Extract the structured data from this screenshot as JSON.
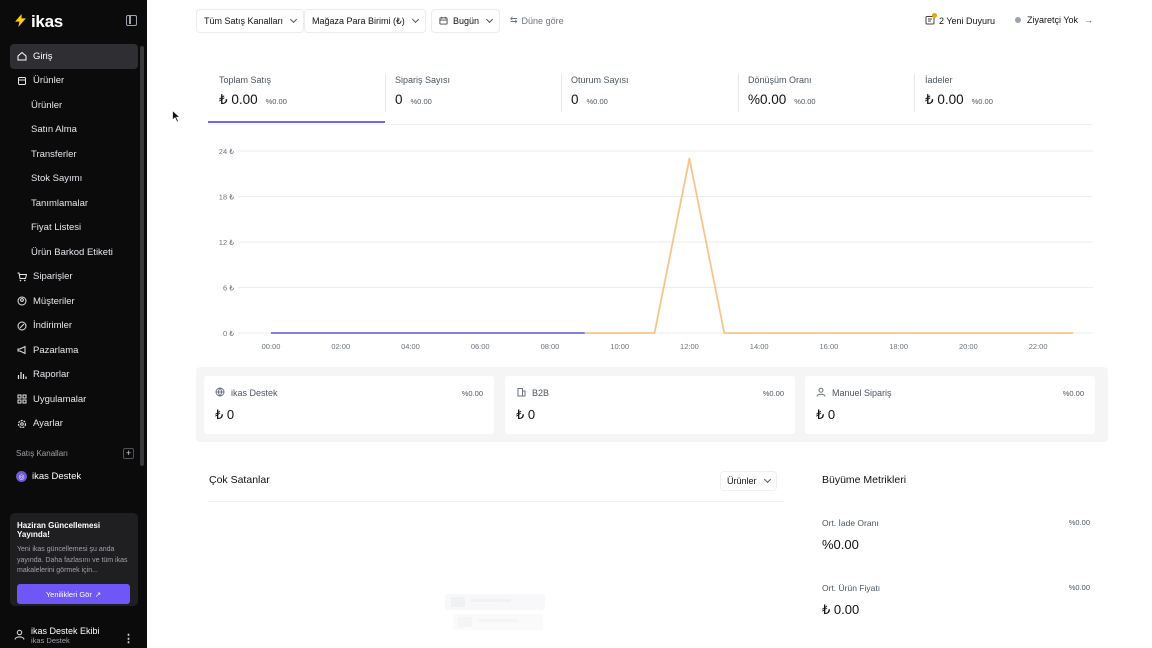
{
  "sidebar": {
    "brand": "ikas",
    "nav": [
      {
        "label": "Giriş",
        "icon": "home-icon",
        "active": true,
        "sub": false
      },
      {
        "label": "Ürünler",
        "icon": "box-icon",
        "active": false,
        "sub": false
      },
      {
        "label": "Ürünler",
        "sub": true
      },
      {
        "label": "Satın Alma",
        "sub": true
      },
      {
        "label": "Transferler",
        "sub": true
      },
      {
        "label": "Stok Sayımı",
        "sub": true
      },
      {
        "label": "Tanımlamalar",
        "sub": true
      },
      {
        "label": "Fiyat Listesi",
        "sub": true
      },
      {
        "label": "Ürün Barkod Etiketi",
        "sub": true
      },
      {
        "label": "Siparişler",
        "icon": "cart-icon",
        "sub": false
      },
      {
        "label": "Müşteriler",
        "icon": "customers-icon",
        "sub": false
      },
      {
        "label": "İndirimler",
        "icon": "discount-icon",
        "sub": false
      },
      {
        "label": "Pazarlama",
        "icon": "megaphone-icon",
        "sub": false
      },
      {
        "label": "Raporlar",
        "icon": "reports-icon",
        "sub": false
      },
      {
        "label": "Uygulamalar",
        "icon": "apps-icon",
        "sub": false
      },
      {
        "label": "Ayarlar",
        "icon": "gear-icon",
        "sub": false
      }
    ],
    "channels_header": "Satış Kanalları",
    "channel": "ikas Destek",
    "promo": {
      "title": "Haziran Güncellemesi Yayında!",
      "text": "Yeni ikas güncellemesi şu anda yayında. Daha fazlasını ve tüm ikas makalelerini görmek için...",
      "button": "Yenilikleri Gör"
    },
    "user": {
      "name": "ikas Destek Ekibi",
      "sub": "ikas Destek"
    }
  },
  "topbar": {
    "channels_filter": "Tüm Satış Kanalları",
    "currency_filter": "Mağaza Para Birimi (₺)",
    "date_filter": "Bugün",
    "compare": "Düne göre",
    "announcements": "2 Yeni Duyuru",
    "visitors": "Ziyaretçi Yok"
  },
  "metrics": [
    {
      "label": "Toplam Satış",
      "value": "₺ 0.00",
      "pct": "%0.00"
    },
    {
      "label": "Sipariş Sayısı",
      "value": "0",
      "pct": "%0.00"
    },
    {
      "label": "Oturum Sayısı",
      "value": "0",
      "pct": "%0.00"
    },
    {
      "label": "Dönüşüm Oranı",
      "value": "%0.00",
      "pct": "%0.00"
    },
    {
      "label": "İadeler",
      "value": "₺ 0.00",
      "pct": "%0.00"
    }
  ],
  "chart_data": {
    "type": "line",
    "x_ticks": [
      "00:00",
      "02:00",
      "04:00",
      "06:00",
      "08:00",
      "10:00",
      "12:00",
      "14:00",
      "16:00",
      "18:00",
      "20:00",
      "22:00"
    ],
    "y_ticks": [
      "0 ₺",
      "6 ₺",
      "12 ₺",
      "18 ₺",
      "24 ₺"
    ],
    "ylim": [
      0,
      24
    ],
    "xlim": [
      0,
      23
    ],
    "grid": true,
    "series": [
      {
        "color": "#6e6bd9",
        "x": [
          0,
          9
        ],
        "y": [
          0,
          0
        ]
      },
      {
        "color": "#f5c58e",
        "x": [
          9,
          11,
          12,
          13,
          23
        ],
        "y": [
          0,
          0,
          23,
          0,
          0
        ]
      }
    ]
  },
  "channel_cards": [
    {
      "name": "ikas Destek",
      "icon": "globe-icon",
      "value": "₺ 0",
      "pct": "%0.00"
    },
    {
      "name": "B2B",
      "icon": "building-icon",
      "value": "₺ 0",
      "pct": "%0.00"
    },
    {
      "name": "Manuel Sipariş",
      "icon": "user-icon",
      "value": "₺ 0",
      "pct": "%0.00"
    }
  ],
  "best_sellers": {
    "title": "Çok Satanlar",
    "filter": "Ürünler"
  },
  "growth": {
    "title": "Büyüme Metrikleri",
    "items": [
      {
        "label": "Ort. İade Oranı",
        "value": "%0.00",
        "pct": "%0.00"
      },
      {
        "label": "Ort. Ürün Fiyatı",
        "value": "₺ 0.00",
        "pct": "%0.00"
      }
    ]
  },
  "colors": {
    "accent": "#6e56f7",
    "line_primary": "#6e6bd9",
    "line_secondary": "#f5c58e",
    "sidebar_bg": "#0b0b0c"
  }
}
